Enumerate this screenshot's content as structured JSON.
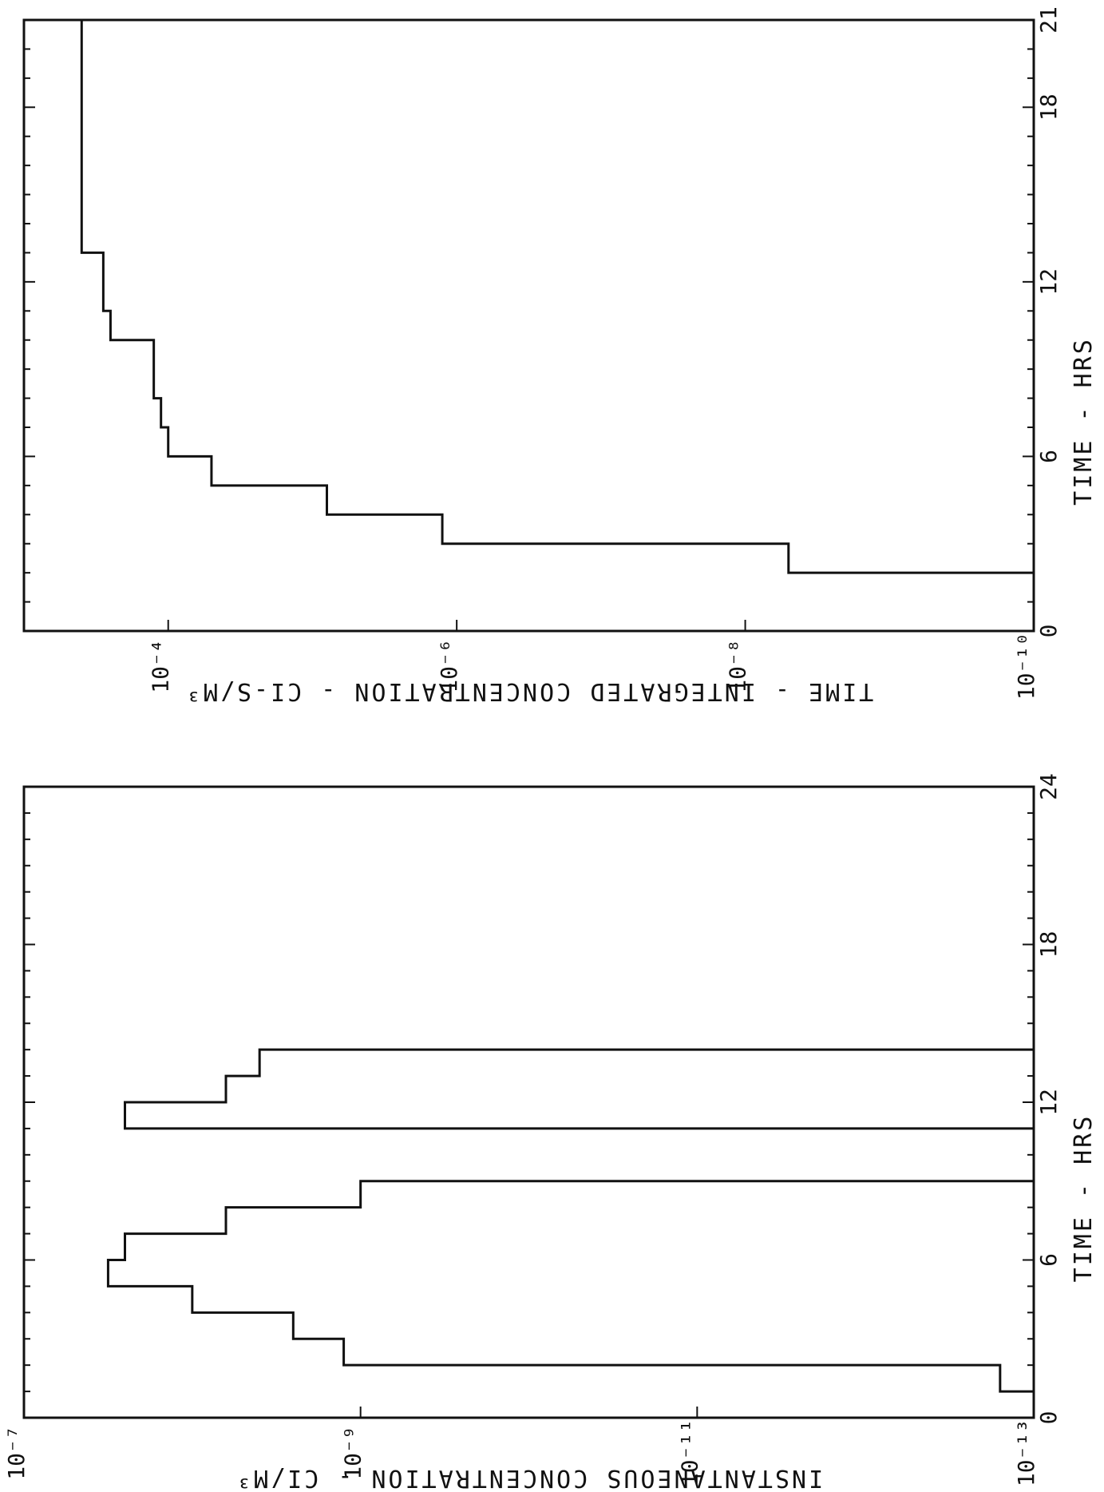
{
  "chart_data": [
    {
      "type": "line",
      "step": true,
      "xlabel": "TIME - HRS",
      "ylabel": "TIME - INTEGRATED CONCENTRATION - CI-S/M³",
      "xlim": [
        0,
        21
      ],
      "ylim_log10": [
        -10,
        -3
      ],
      "x_ticks": [
        0,
        6,
        12,
        18,
        21
      ],
      "y_ticks": [
        {
          "exp": -10,
          "label": "10⁻¹⁰"
        },
        {
          "exp": -8,
          "label": "10⁻⁸"
        },
        {
          "exp": -6,
          "label": "10⁻⁶"
        },
        {
          "exp": -4,
          "label": "10⁻⁴"
        }
      ],
      "steps": [
        {
          "x0": 1.0,
          "x1": 2.0,
          "log10_y": -10.0
        },
        {
          "x0": 2.0,
          "x1": 3.0,
          "log10_y": -8.3
        },
        {
          "x0": 3.0,
          "x1": 4.0,
          "log10_y": -5.9
        },
        {
          "x0": 4.0,
          "x1": 5.0,
          "log10_y": -5.1
        },
        {
          "x0": 5.0,
          "x1": 6.0,
          "log10_y": -4.3
        },
        {
          "x0": 6.0,
          "x1": 7.0,
          "log10_y": -4.0
        },
        {
          "x0": 7.0,
          "x1": 8.0,
          "log10_y": -3.95
        },
        {
          "x0": 8.0,
          "x1": 10.0,
          "log10_y": -3.9
        },
        {
          "x0": 10.0,
          "x1": 11.0,
          "log10_y": -3.6
        },
        {
          "x0": 11.0,
          "x1": 13.0,
          "log10_y": -3.55
        },
        {
          "x0": 13.0,
          "x1": 21.0,
          "log10_y": -3.4
        }
      ]
    },
    {
      "type": "line",
      "step": true,
      "xlabel": "TIME - HRS",
      "ylabel": "INSTANTANEOUS CONCENTRATION - CI/M³",
      "xlim": [
        0,
        24
      ],
      "ylim_log10": [
        -13,
        -7
      ],
      "x_ticks": [
        0,
        6,
        12,
        18,
        24
      ],
      "y_ticks": [
        {
          "exp": -13,
          "label": "10⁻¹³"
        },
        {
          "exp": -11,
          "label": "10⁻¹¹"
        },
        {
          "exp": -9,
          "label": "10⁻⁹"
        },
        {
          "exp": -7,
          "label": "10⁻⁷"
        }
      ],
      "steps": [
        {
          "x0": 1.0,
          "x1": 2.0,
          "log10_y": -12.8
        },
        {
          "x0": 2.0,
          "x1": 3.0,
          "log10_y": -8.9
        },
        {
          "x0": 3.0,
          "x1": 4.0,
          "log10_y": -8.6
        },
        {
          "x0": 4.0,
          "x1": 5.0,
          "log10_y": -8.0
        },
        {
          "x0": 5.0,
          "x1": 6.0,
          "log10_y": -7.5
        },
        {
          "x0": 6.0,
          "x1": 7.0,
          "log10_y": -7.6
        },
        {
          "x0": 7.0,
          "x1": 8.0,
          "log10_y": -8.2
        },
        {
          "x0": 8.0,
          "x1": 9.0,
          "log10_y": -9.0
        },
        {
          "x0": 9.0,
          "x1": 11.0,
          "log10_y": -13.0
        },
        {
          "x0": 11.0,
          "x1": 12.0,
          "log10_y": -7.6
        },
        {
          "x0": 12.0,
          "x1": 13.0,
          "log10_y": -8.2
        },
        {
          "x0": 13.0,
          "x1": 14.0,
          "log10_y": -8.4
        },
        {
          "x0": 14.0,
          "x1": 24.0,
          "log10_y": -13.0
        }
      ]
    }
  ]
}
